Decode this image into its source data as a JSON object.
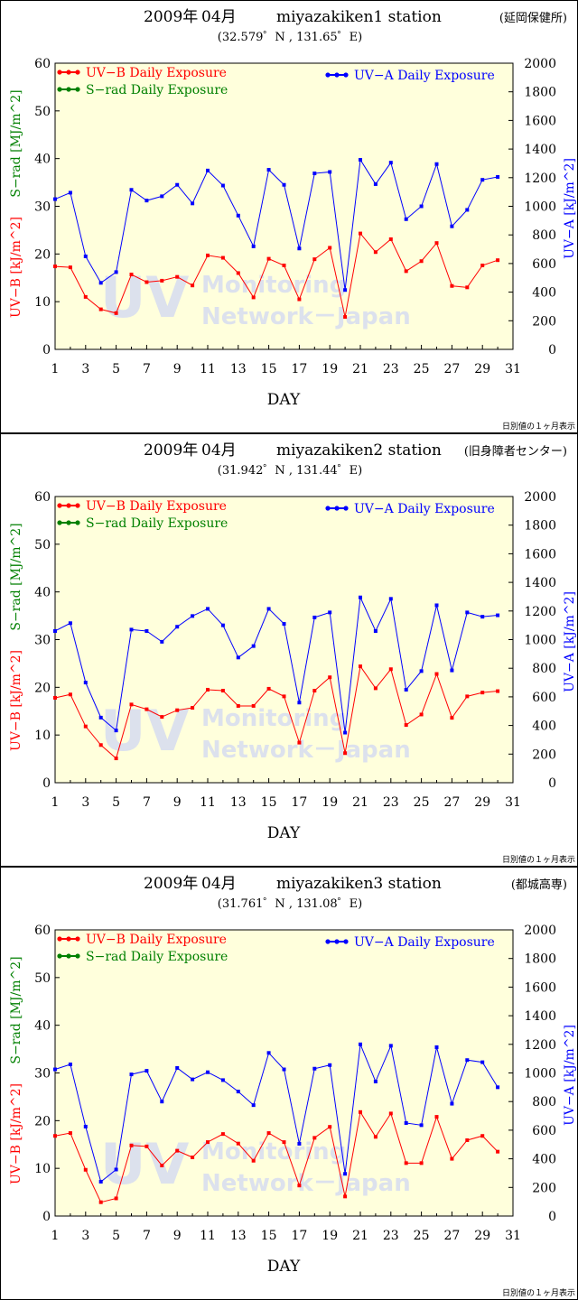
{
  "chart_data": [
    {
      "type": "line",
      "title_year": "2009年",
      "title_month": "04月",
      "station": "miyazakiken1 station",
      "station_note": "(延岡保健所)",
      "coords": "(32.579゜N , 131.65゜E)",
      "xlabel": "DAY",
      "ylabel_left_uvb": "UV−B [kJ/m^2]",
      "ylabel_left_srad": "S−rad [MJ/m^2]",
      "ylabel_right": "UV−A [kJ/m^2]",
      "footnote": "日別値の１ヶ月表示",
      "x_ticks": [
        "1",
        "3",
        "5",
        "7",
        "9",
        "11",
        "13",
        "15",
        "17",
        "19",
        "21",
        "23",
        "25",
        "27",
        "29",
        "31"
      ],
      "y_left_ticks": [
        "0",
        "10",
        "20",
        "30",
        "40",
        "50",
        "60"
      ],
      "y_right_ticks": [
        "0",
        "200",
        "400",
        "600",
        "800",
        "1000",
        "1200",
        "1400",
        "1600",
        "1800",
        "2000"
      ],
      "xlim": [
        1,
        31
      ],
      "ylim_left": [
        0,
        60
      ],
      "ylim_right": [
        0,
        2000
      ],
      "grid": false,
      "legend": {
        "uvb": "UV−B Daily Exposure",
        "srad": "S−rad Daily Exposure",
        "uva": "UV−A  Daily Exposure"
      },
      "series": [
        {
          "name": "UV−B Daily Exposure",
          "axis": "left",
          "color": "#ff0000",
          "x": [
            1,
            2,
            3,
            4,
            5,
            6,
            7,
            8,
            9,
            10,
            11,
            12,
            13,
            14,
            15,
            16,
            17,
            18,
            19,
            20,
            21,
            22,
            23,
            24,
            25,
            26,
            27,
            28,
            29,
            30
          ],
          "values": [
            17.4,
            17.2,
            11.0,
            8.4,
            7.6,
            15.7,
            14.1,
            14.4,
            15.2,
            13.4,
            19.7,
            19.2,
            16.0,
            10.9,
            19.0,
            17.6,
            10.5,
            18.9,
            21.3,
            6.8,
            24.3,
            20.4,
            23.1,
            16.4,
            18.5,
            22.3,
            13.3,
            13.0,
            17.6,
            18.7
          ]
        },
        {
          "name": "UV−A  Daily Exposure",
          "axis": "right",
          "color": "#0000ff",
          "x": [
            1,
            2,
            3,
            4,
            5,
            6,
            7,
            8,
            9,
            10,
            11,
            12,
            13,
            14,
            15,
            16,
            17,
            18,
            19,
            20,
            21,
            22,
            23,
            24,
            25,
            26,
            27,
            28,
            29,
            30
          ],
          "values": [
            1050,
            1095,
            650,
            465,
            540,
            1115,
            1040,
            1070,
            1150,
            1020,
            1250,
            1145,
            935,
            720,
            1255,
            1150,
            705,
            1230,
            1240,
            415,
            1325,
            1155,
            1305,
            910,
            1000,
            1295,
            860,
            975,
            1185,
            1205
          ]
        },
        {
          "name": "S−rad Daily Exposure",
          "axis": "left",
          "color": "#008000",
          "x": [],
          "values": []
        }
      ]
    },
    {
      "type": "line",
      "title_year": "2009年",
      "title_month": "04月",
      "station": "miyazakiken2 station",
      "station_note": "(旧身障者センター)",
      "coords": "(31.942゜N , 131.44゜E)",
      "xlabel": "DAY",
      "ylabel_left_uvb": "UV−B [kJ/m^2]",
      "ylabel_left_srad": "S−rad [MJ/m^2]",
      "ylabel_right": "UV−A [kJ/m^2]",
      "footnote": "日別値の１ヶ月表示",
      "x_ticks": [
        "1",
        "3",
        "5",
        "7",
        "9",
        "11",
        "13",
        "15",
        "17",
        "19",
        "21",
        "23",
        "25",
        "27",
        "29",
        "31"
      ],
      "y_left_ticks": [
        "0",
        "10",
        "20",
        "30",
        "40",
        "50",
        "60"
      ],
      "y_right_ticks": [
        "0",
        "200",
        "400",
        "600",
        "800",
        "1000",
        "1200",
        "1400",
        "1600",
        "1800",
        "2000"
      ],
      "xlim": [
        1,
        31
      ],
      "ylim_left": [
        0,
        60
      ],
      "ylim_right": [
        0,
        2000
      ],
      "grid": false,
      "legend": {
        "uvb": "UV−B Daily Exposure",
        "srad": "S−rad Daily Exposure",
        "uva": "UV−A  Daily Exposure"
      },
      "series": [
        {
          "name": "UV−B Daily Exposure",
          "axis": "left",
          "color": "#ff0000",
          "x": [
            1,
            2,
            3,
            4,
            5,
            6,
            7,
            8,
            9,
            10,
            11,
            12,
            13,
            14,
            15,
            16,
            17,
            18,
            19,
            20,
            21,
            22,
            23,
            24,
            25,
            26,
            27,
            28,
            29,
            30
          ],
          "values": [
            17.8,
            18.5,
            11.8,
            7.9,
            5.1,
            16.4,
            15.4,
            13.8,
            15.2,
            15.7,
            19.5,
            19.3,
            16.1,
            16.1,
            19.7,
            18.1,
            8.4,
            19.3,
            22.1,
            6.2,
            24.4,
            19.8,
            23.8,
            12.1,
            14.3,
            22.8,
            13.6,
            18.1,
            18.9,
            19.2
          ]
        },
        {
          "name": "UV−A  Daily Exposure",
          "axis": "right",
          "color": "#0000ff",
          "x": [
            1,
            2,
            3,
            4,
            5,
            6,
            7,
            8,
            9,
            10,
            11,
            12,
            13,
            14,
            15,
            16,
            17,
            18,
            19,
            20,
            21,
            22,
            23,
            24,
            25,
            26,
            27,
            28,
            29,
            30
          ],
          "values": [
            1060,
            1115,
            700,
            455,
            365,
            1070,
            1060,
            985,
            1090,
            1165,
            1215,
            1100,
            875,
            955,
            1215,
            1110,
            560,
            1155,
            1190,
            350,
            1295,
            1060,
            1285,
            650,
            780,
            1240,
            785,
            1190,
            1160,
            1170
          ]
        },
        {
          "name": "S−rad Daily Exposure",
          "axis": "left",
          "color": "#008000",
          "x": [],
          "values": []
        }
      ]
    },
    {
      "type": "line",
      "title_year": "2009年",
      "title_month": "04月",
      "station": "miyazakiken3 station",
      "station_note": "(都城高専)",
      "coords": "(31.761゜N , 131.08゜E)",
      "xlabel": "DAY",
      "ylabel_left_uvb": "UV−B [kJ/m^2]",
      "ylabel_left_srad": "S−rad [MJ/m^2]",
      "ylabel_right": "UV−A [kJ/m^2]",
      "footnote": "日別値の１ヶ月表示",
      "x_ticks": [
        "1",
        "3",
        "5",
        "7",
        "9",
        "11",
        "13",
        "15",
        "17",
        "19",
        "21",
        "23",
        "25",
        "27",
        "29",
        "31"
      ],
      "y_left_ticks": [
        "0",
        "10",
        "20",
        "30",
        "40",
        "50",
        "60"
      ],
      "y_right_ticks": [
        "0",
        "200",
        "400",
        "600",
        "800",
        "1000",
        "1200",
        "1400",
        "1600",
        "1800",
        "2000"
      ],
      "xlim": [
        1,
        31
      ],
      "ylim_left": [
        0,
        60
      ],
      "ylim_right": [
        0,
        2000
      ],
      "grid": false,
      "legend": {
        "uvb": "UV−B Daily Exposure",
        "srad": "S−rad Daily Exposure",
        "uva": "UV−A  Daily Exposure"
      },
      "series": [
        {
          "name": "UV−B Daily Exposure",
          "axis": "left",
          "color": "#ff0000",
          "x": [
            1,
            2,
            3,
            4,
            5,
            6,
            7,
            8,
            9,
            10,
            11,
            12,
            13,
            14,
            15,
            16,
            17,
            18,
            19,
            20,
            21,
            22,
            23,
            24,
            25,
            26,
            27,
            28,
            29,
            30
          ],
          "values": [
            16.8,
            17.4,
            9.7,
            2.9,
            3.7,
            14.8,
            14.6,
            10.6,
            13.7,
            12.3,
            15.5,
            17.2,
            15.2,
            11.6,
            17.4,
            15.5,
            6.4,
            16.4,
            18.7,
            4.1,
            21.8,
            16.6,
            21.5,
            11.1,
            11.1,
            20.8,
            12.0,
            15.9,
            16.8,
            13.5
          ]
        },
        {
          "name": "UV−A  Daily Exposure",
          "axis": "right",
          "color": "#0000ff",
          "x": [
            1,
            2,
            3,
            4,
            5,
            6,
            7,
            8,
            9,
            10,
            11,
            12,
            13,
            14,
            15,
            16,
            17,
            18,
            19,
            20,
            21,
            22,
            23,
            24,
            25,
            26,
            27,
            28,
            29,
            30
          ],
          "values": [
            1025,
            1060,
            625,
            240,
            325,
            990,
            1015,
            800,
            1035,
            955,
            1005,
            950,
            870,
            775,
            1140,
            1025,
            505,
            1030,
            1055,
            295,
            1200,
            940,
            1190,
            650,
            635,
            1180,
            785,
            1090,
            1075,
            900
          ]
        },
        {
          "name": "S−rad Daily Exposure",
          "axis": "left",
          "color": "#008000",
          "x": [],
          "values": []
        }
      ]
    }
  ],
  "watermark": {
    "big": "UV",
    "line1": "Monitoring",
    "line2": "Network－Japan"
  }
}
